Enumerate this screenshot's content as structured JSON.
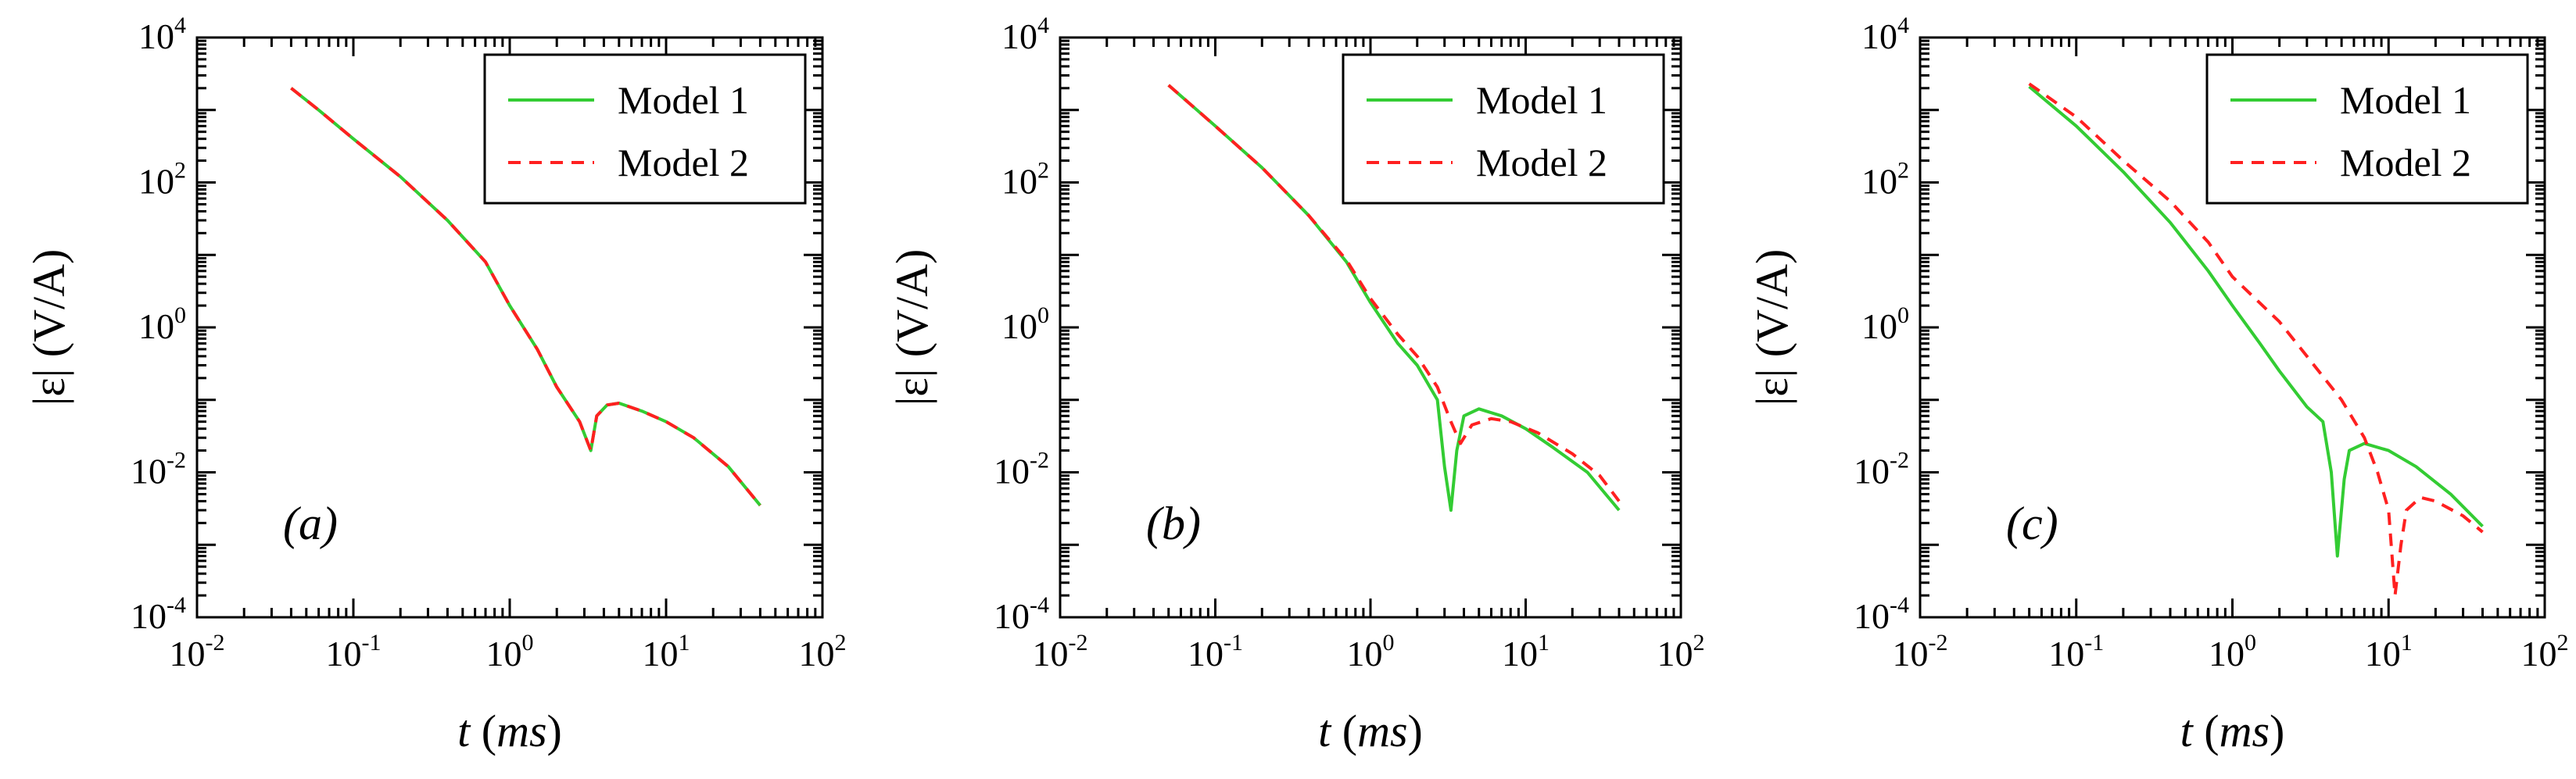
{
  "chart_data": [
    {
      "panel_label": "(a)",
      "type": "line",
      "xscale": "log",
      "yscale": "log",
      "xlim": [
        0.01,
        100
      ],
      "ylim": [
        0.0001,
        10000
      ],
      "xlabel": "t (ms)",
      "ylabel": "|ε| (V/A)",
      "x_ticks": [
        "10-2",
        "10-1",
        "100",
        "101",
        "102"
      ],
      "y_ticks": [
        "10-4",
        "10-2",
        "100",
        "102",
        "104"
      ],
      "legend": {
        "position": "top-right",
        "entries": [
          "Model 1",
          "Model 2"
        ]
      },
      "series": [
        {
          "name": "Model 1",
          "color": "#33cc33",
          "style": "solid",
          "points": [
            [
              0.04,
              2000
            ],
            [
              0.06,
              1000
            ],
            [
              0.1,
              400
            ],
            [
              0.2,
              120
            ],
            [
              0.4,
              30
            ],
            [
              0.7,
              8
            ],
            [
              1.0,
              2
            ],
            [
              1.5,
              0.5
            ],
            [
              2.0,
              0.15
            ],
            [
              2.8,
              0.05
            ],
            [
              3.3,
              0.02
            ],
            [
              3.6,
              0.06
            ],
            [
              4.2,
              0.085
            ],
            [
              5.0,
              0.09
            ],
            [
              7.0,
              0.07
            ],
            [
              10,
              0.05
            ],
            [
              15,
              0.03
            ],
            [
              25,
              0.012
            ],
            [
              40,
              0.0035
            ]
          ]
        },
        {
          "name": "Model 2",
          "color": "#ff2020",
          "style": "dashed",
          "points": [
            [
              0.04,
              2000
            ],
            [
              0.06,
              1000
            ],
            [
              0.1,
              400
            ],
            [
              0.2,
              120
            ],
            [
              0.4,
              30
            ],
            [
              0.7,
              8
            ],
            [
              1.0,
              2
            ],
            [
              1.5,
              0.5
            ],
            [
              2.0,
              0.15
            ],
            [
              2.8,
              0.05
            ],
            [
              3.3,
              0.02
            ],
            [
              3.6,
              0.06
            ],
            [
              4.2,
              0.085
            ],
            [
              5.0,
              0.09
            ],
            [
              7.0,
              0.07
            ],
            [
              10,
              0.05
            ],
            [
              15,
              0.03
            ],
            [
              25,
              0.012
            ],
            [
              40,
              0.0035
            ]
          ]
        }
      ]
    },
    {
      "panel_label": "(b)",
      "type": "line",
      "xscale": "log",
      "yscale": "log",
      "xlim": [
        0.01,
        100
      ],
      "ylim": [
        0.0001,
        10000
      ],
      "xlabel": "t (ms)",
      "ylabel": "|ε| (V/A)",
      "x_ticks": [
        "10-2",
        "10-1",
        "100",
        "101",
        "102"
      ],
      "y_ticks": [
        "10-4",
        "10-2",
        "100",
        "102",
        "104"
      ],
      "legend": {
        "position": "top-right",
        "entries": [
          "Model 1",
          "Model 2"
        ]
      },
      "series": [
        {
          "name": "Model 1",
          "color": "#33cc33",
          "style": "solid",
          "points": [
            [
              0.05,
              2200
            ],
            [
              0.1,
              600
            ],
            [
              0.2,
              160
            ],
            [
              0.4,
              35
            ],
            [
              0.7,
              8
            ],
            [
              1.0,
              2.2
            ],
            [
              1.5,
              0.6
            ],
            [
              2.0,
              0.3
            ],
            [
              2.7,
              0.1
            ],
            [
              3.0,
              0.012
            ],
            [
              3.3,
              0.003
            ],
            [
              3.6,
              0.02
            ],
            [
              4.0,
              0.06
            ],
            [
              5.0,
              0.075
            ],
            [
              7.0,
              0.06
            ],
            [
              10,
              0.04
            ],
            [
              15,
              0.022
            ],
            [
              25,
              0.01
            ],
            [
              40,
              0.003
            ]
          ]
        },
        {
          "name": "Model 2",
          "color": "#ff2020",
          "style": "dashed",
          "points": [
            [
              0.05,
              2200
            ],
            [
              0.1,
              600
            ],
            [
              0.2,
              160
            ],
            [
              0.4,
              35
            ],
            [
              0.7,
              8.5
            ],
            [
              1.0,
              2.5
            ],
            [
              1.5,
              0.8
            ],
            [
              2.0,
              0.4
            ],
            [
              2.7,
              0.15
            ],
            [
              3.3,
              0.05
            ],
            [
              3.8,
              0.025
            ],
            [
              4.5,
              0.045
            ],
            [
              6.0,
              0.055
            ],
            [
              8.0,
              0.05
            ],
            [
              12,
              0.035
            ],
            [
              20,
              0.018
            ],
            [
              30,
              0.009
            ],
            [
              40,
              0.004
            ]
          ]
        }
      ]
    },
    {
      "panel_label": "(c)",
      "type": "line",
      "xscale": "log",
      "yscale": "log",
      "xlim": [
        0.01,
        100
      ],
      "ylim": [
        0.0001,
        10000
      ],
      "xlabel": "t (ms)",
      "ylabel": "|ε| (V/A)",
      "x_ticks": [
        "10-2",
        "10-1",
        "100",
        "101",
        "102"
      ],
      "y_ticks": [
        "10-4",
        "10-2",
        "100",
        "102",
        "104"
      ],
      "legend": {
        "position": "top-right",
        "entries": [
          "Model 1",
          "Model 2"
        ]
      },
      "series": [
        {
          "name": "Model 1",
          "color": "#33cc33",
          "style": "solid",
          "points": [
            [
              0.05,
              2100
            ],
            [
              0.1,
              600
            ],
            [
              0.2,
              140
            ],
            [
              0.4,
              28
            ],
            [
              0.7,
              6
            ],
            [
              1.0,
              2
            ],
            [
              1.5,
              0.6
            ],
            [
              2.0,
              0.25
            ],
            [
              3.0,
              0.08
            ],
            [
              3.8,
              0.05
            ],
            [
              4.3,
              0.01
            ],
            [
              4.7,
              0.0007
            ],
            [
              5.2,
              0.008
            ],
            [
              5.6,
              0.02
            ],
            [
              7.0,
              0.025
            ],
            [
              10,
              0.02
            ],
            [
              15,
              0.012
            ],
            [
              25,
              0.005
            ],
            [
              40,
              0.0018
            ]
          ]
        },
        {
          "name": "Model 2",
          "color": "#ff2020",
          "style": "dashed",
          "points": [
            [
              0.05,
              2300
            ],
            [
              0.1,
              800
            ],
            [
              0.2,
              200
            ],
            [
              0.4,
              55
            ],
            [
              0.7,
              15
            ],
            [
              1.0,
              5
            ],
            [
              2.0,
              1.2
            ],
            [
              3.0,
              0.4
            ],
            [
              5.0,
              0.1
            ],
            [
              7.0,
              0.03
            ],
            [
              8.5,
              0.01
            ],
            [
              10,
              0.003
            ],
            [
              11,
              0.0002
            ],
            [
              12,
              0.001
            ],
            [
              13,
              0.003
            ],
            [
              16,
              0.0045
            ],
            [
              20,
              0.004
            ],
            [
              30,
              0.0025
            ],
            [
              40,
              0.0015
            ]
          ]
        }
      ]
    }
  ]
}
